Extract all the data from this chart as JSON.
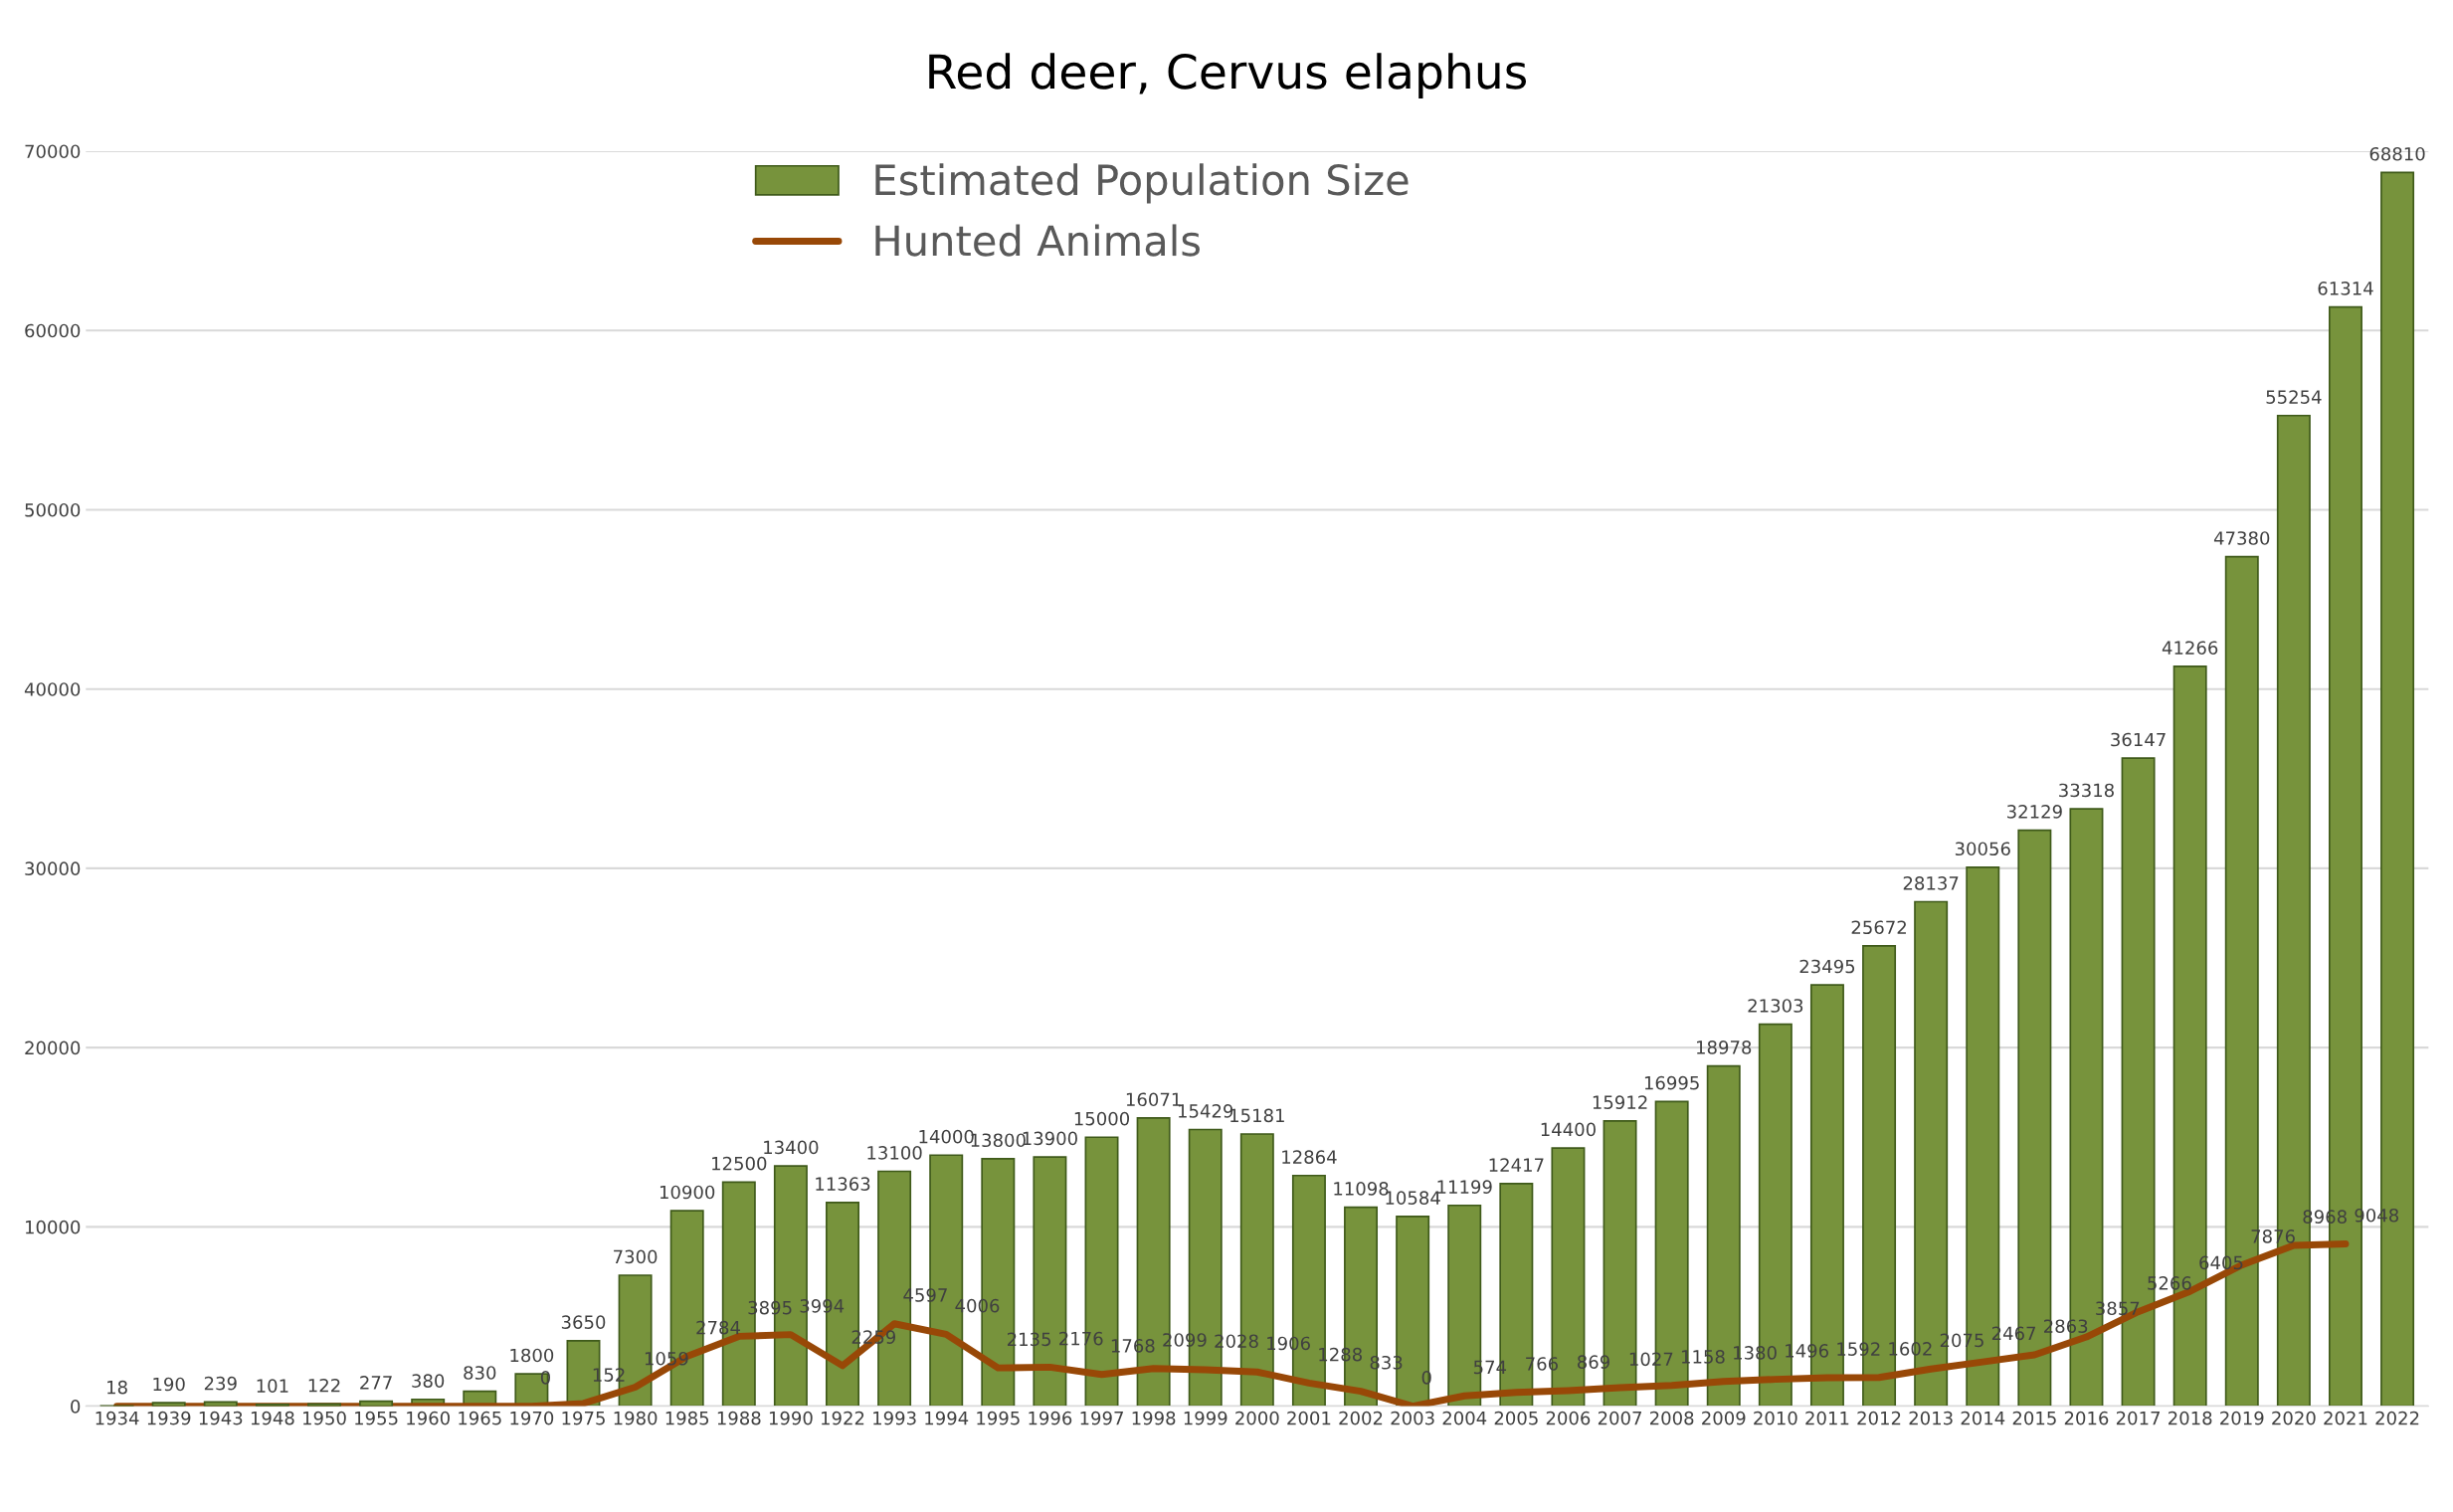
{
  "chart_data": {
    "type": "bar",
    "title": "Red deer, Cervus elaphus",
    "categories": [
      "1934",
      "1939",
      "1943",
      "1948",
      "1950",
      "1955",
      "1960",
      "1965",
      "1970",
      "1975",
      "1980",
      "1985",
      "1988",
      "1990",
      "1922",
      "1993",
      "1994",
      "1995",
      "1996",
      "1997",
      "1998",
      "1999",
      "2000",
      "2001",
      "2002",
      "2003",
      "2004",
      "2005",
      "2006",
      "2007",
      "2008",
      "2009",
      "2010",
      "2011",
      "2012",
      "2013",
      "2014",
      "2015",
      "2016",
      "2017",
      "2018",
      "2019",
      "2020",
      "2021",
      "2022"
    ],
    "series": [
      {
        "name": "Estimated Population Size",
        "color": "#77933c",
        "values": [
          18,
          190,
          239,
          101,
          122,
          277,
          380,
          830,
          1800,
          3650,
          7300,
          10900,
          12500,
          13400,
          11363,
          13100,
          14000,
          13800,
          13900,
          15000,
          16071,
          15429,
          15181,
          12864,
          11098,
          10584,
          11199,
          12417,
          14400,
          15912,
          16995,
          18978,
          21303,
          23495,
          25672,
          28137,
          30056,
          32129,
          33318,
          36147,
          41266,
          47380,
          55254,
          61314,
          68810
        ]
      },
      {
        "name": "Hunted Animals",
        "type": "line",
        "color": "#984807",
        "values": [
          0,
          0,
          0,
          0,
          0,
          0,
          0,
          0,
          0,
          152,
          1059,
          2784,
          3895,
          3994,
          2259,
          4597,
          4006,
          2135,
          2176,
          1768,
          2099,
          2028,
          1906,
          1288,
          833,
          0,
          574,
          766,
          869,
          1027,
          1158,
          1380,
          1496,
          1592,
          1602,
          2075,
          2467,
          2863,
          3857,
          5266,
          6405,
          7876,
          8968,
          9048,
          null
        ],
        "value_labels": [
          null,
          null,
          null,
          null,
          null,
          null,
          null,
          null,
          "0",
          "152",
          "1059",
          "2784",
          "3895",
          "3994",
          "2259",
          "4597",
          "4006",
          "2135",
          "2176",
          "1768",
          "2099",
          "2028",
          "1906",
          "1288",
          "833",
          "0",
          "574",
          "766",
          "869",
          "1027",
          "1158",
          "1380",
          "1496",
          "1592",
          "1602",
          "2075",
          "2467",
          "2863",
          "3857",
          "5266",
          "6405",
          "7876",
          "8968",
          "9048",
          null
        ]
      }
    ],
    "data_labels": true,
    "ylim": [
      0,
      70000
    ],
    "yticks": [
      0,
      10000,
      20000,
      30000,
      40000,
      50000,
      60000,
      70000
    ],
    "grid": "y",
    "legend": "top left",
    "marker": "none",
    "line_style": "solid"
  }
}
